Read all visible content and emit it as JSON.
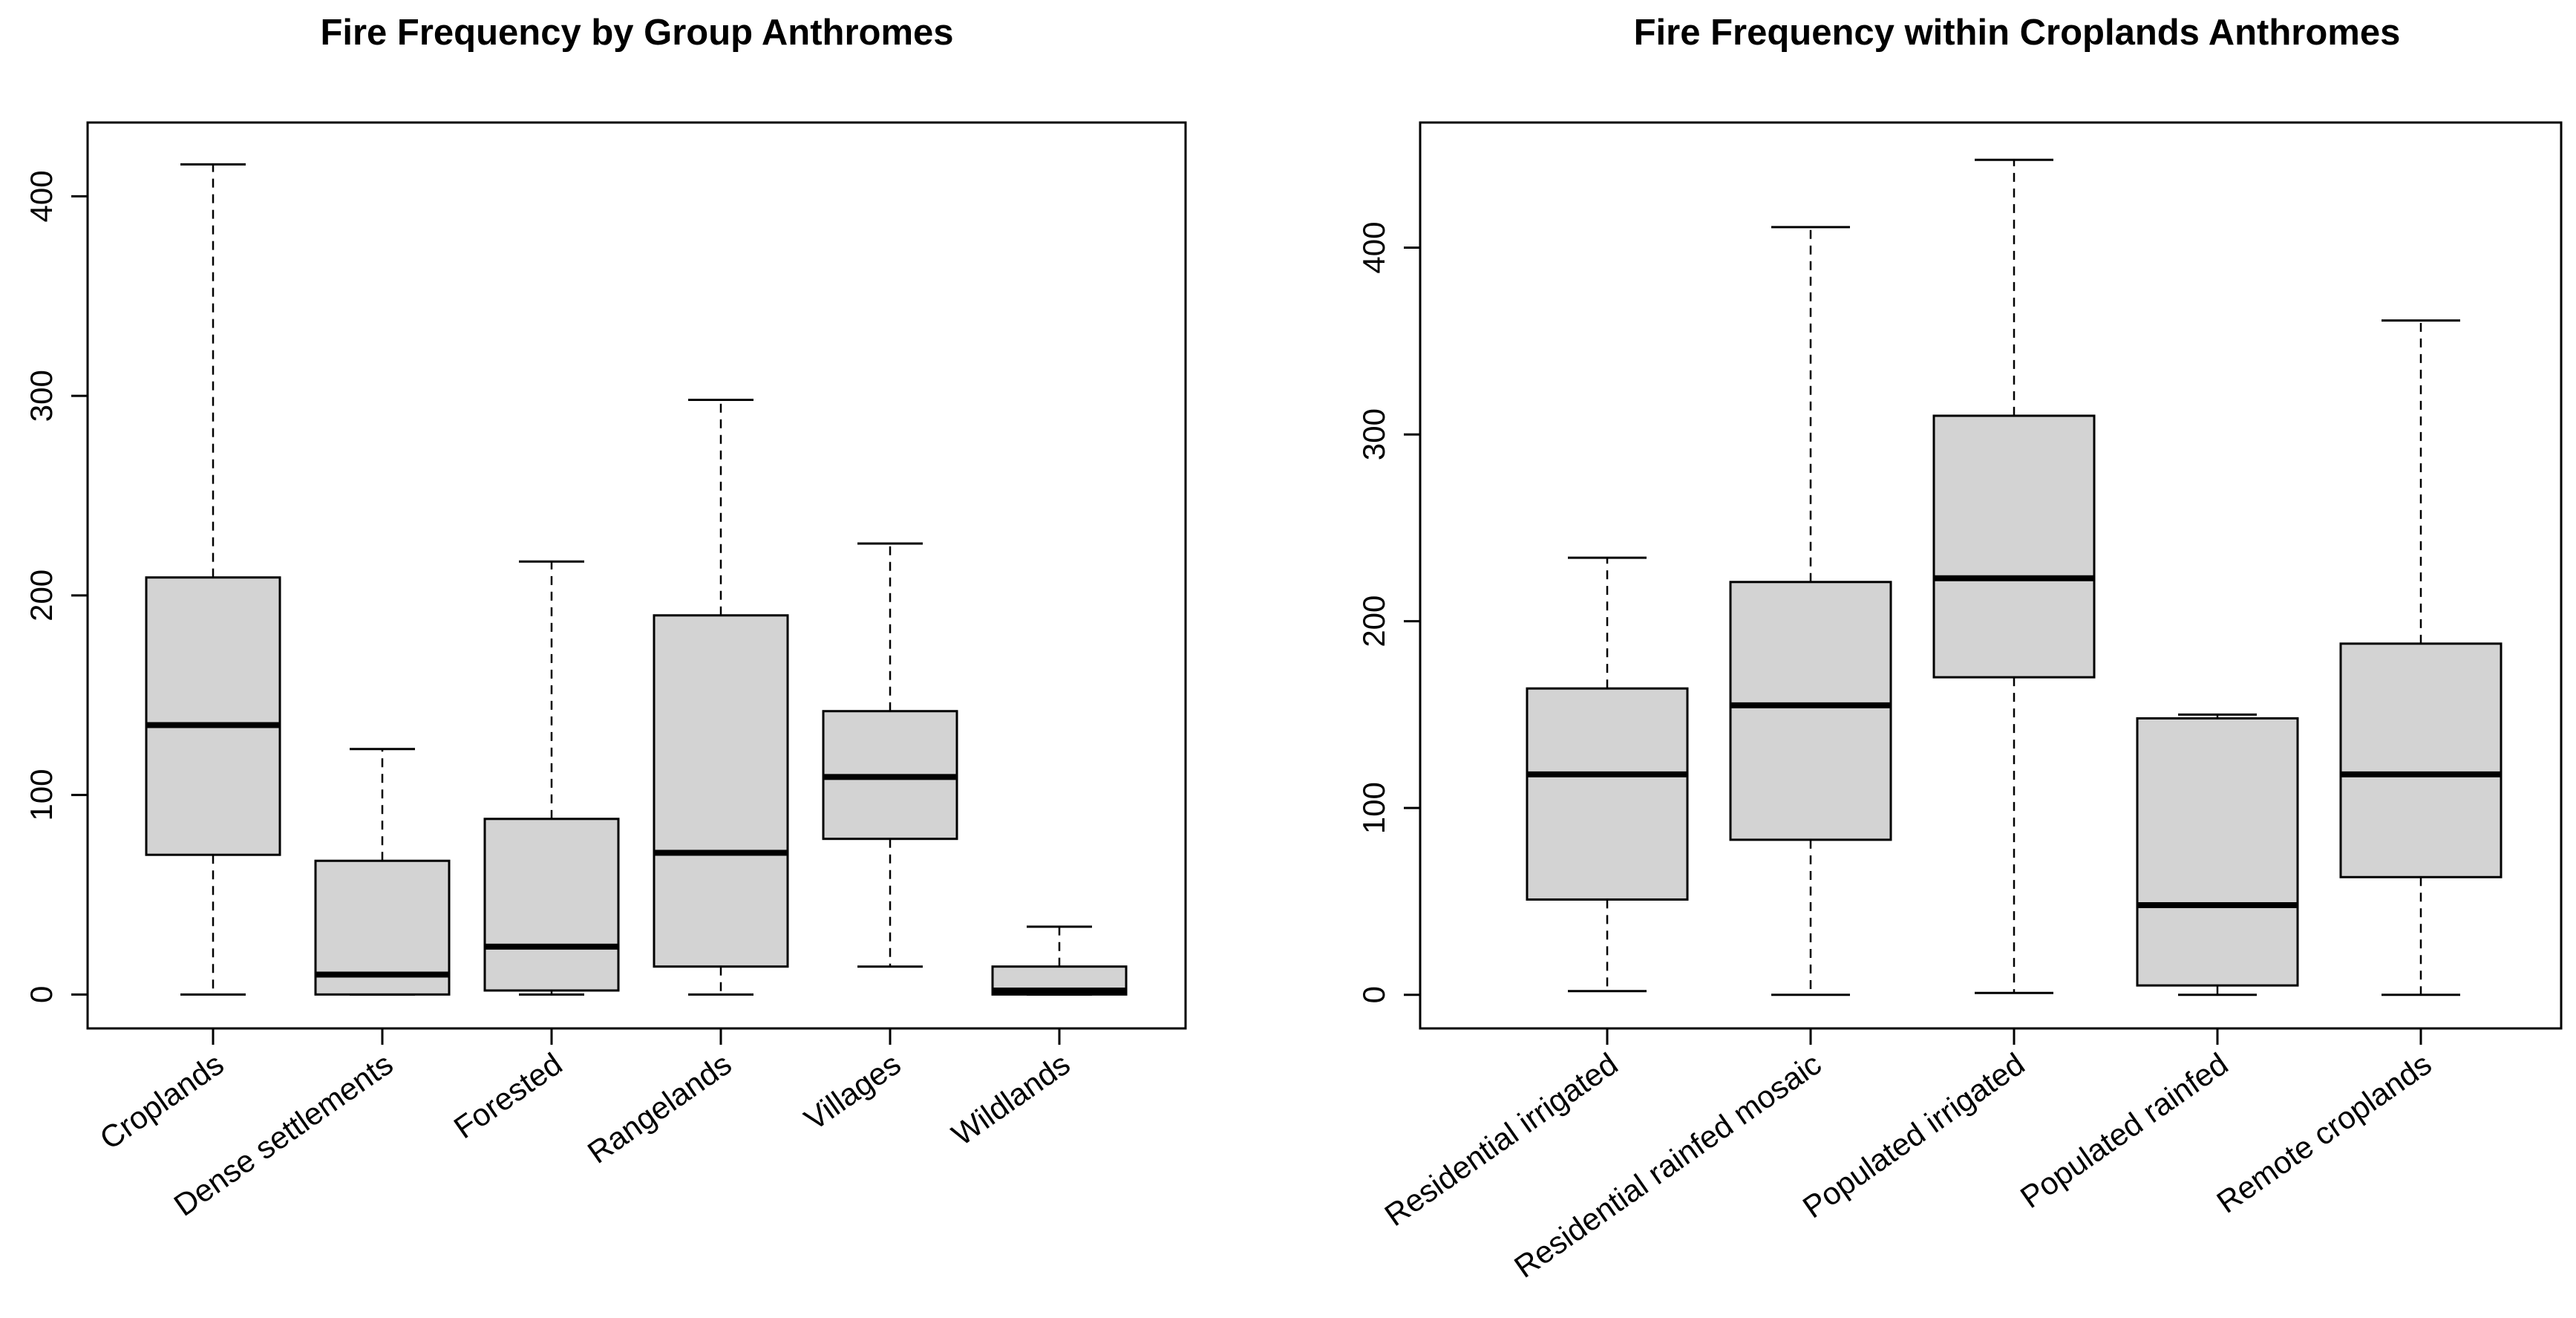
{
  "chart_data": [
    {
      "type": "boxplot",
      "title": "Fire Frequency by Group Anthromes",
      "xlabel": "",
      "ylabel": "",
      "ylim": [
        -17,
        437
      ],
      "yticks": [
        0,
        100,
        200,
        300,
        400
      ],
      "ytick_labels": [
        "0",
        "100",
        "200",
        "300",
        "400"
      ],
      "box_color": "#d3d3d3",
      "categories": [
        "Croplands",
        "Dense settlements",
        "Forested",
        "Rangelands",
        "Villages",
        "Wildlands"
      ],
      "boxes": [
        {
          "label": "Croplands",
          "whisker_low": 0,
          "q1": 70,
          "median": 135,
          "q3": 209,
          "whisker_high": 416
        },
        {
          "label": "Dense settlements",
          "whisker_low": 0,
          "q1": 0,
          "median": 10,
          "q3": 67,
          "whisker_high": 123
        },
        {
          "label": "Forested",
          "whisker_low": 0,
          "q1": 2,
          "median": 24,
          "q3": 88,
          "whisker_high": 217
        },
        {
          "label": "Rangelands",
          "whisker_low": 0,
          "q1": 14,
          "median": 71,
          "q3": 190,
          "whisker_high": 298
        },
        {
          "label": "Villages",
          "whisker_low": 14,
          "q1": 78,
          "median": 109,
          "q3": 142,
          "whisker_high": 226
        },
        {
          "label": "Wildlands",
          "whisker_low": 0,
          "q1": 0,
          "median": 2,
          "q3": 14,
          "whisker_high": 34
        }
      ]
    },
    {
      "type": "boxplot",
      "title": "Fire Frequency within Croplands Anthromes",
      "xlabel": "",
      "ylabel": "",
      "ylim": [
        -18,
        467
      ],
      "yticks": [
        0,
        100,
        200,
        300,
        400
      ],
      "ytick_labels": [
        "0",
        "100",
        "200",
        "300",
        "400"
      ],
      "box_color": "#d3d3d3",
      "categories": [
        "Residential irrigated",
        "Residential rainfed mosaic",
        "Populated irrigated",
        "Populated rainfed",
        "Remote croplands"
      ],
      "boxes": [
        {
          "label": "Residential irrigated",
          "whisker_low": 2,
          "q1": 51,
          "median": 118,
          "q3": 164,
          "whisker_high": 234
        },
        {
          "label": "Residential rainfed mosaic",
          "whisker_low": 0,
          "q1": 83,
          "median": 155,
          "q3": 221,
          "whisker_high": 411
        },
        {
          "label": "Populated irrigated",
          "whisker_low": 1,
          "q1": 170,
          "median": 223,
          "q3": 310,
          "whisker_high": 447
        },
        {
          "label": "Populated rainfed",
          "whisker_low": 0,
          "q1": 5,
          "median": 48,
          "q3": 148,
          "whisker_high": 150
        },
        {
          "label": "Remote croplands",
          "whisker_low": 0,
          "q1": 63,
          "median": 118,
          "q3": 188,
          "whisker_high": 361
        }
      ]
    }
  ]
}
